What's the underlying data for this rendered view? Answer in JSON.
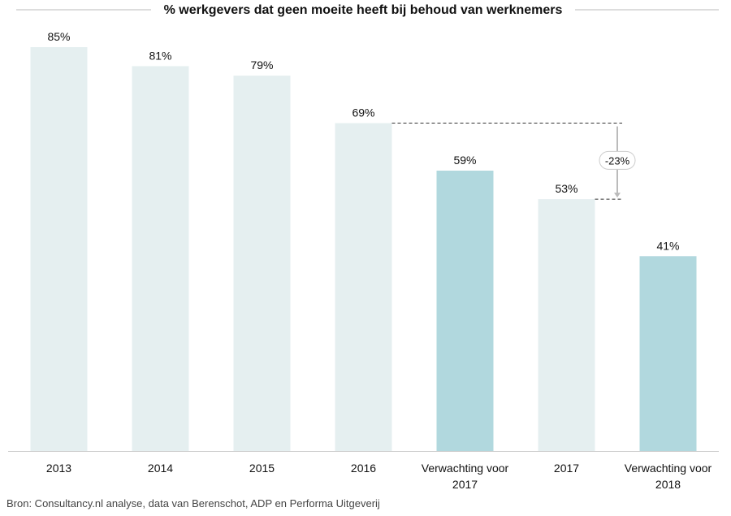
{
  "chart_data": {
    "type": "bar",
    "title": "% werkgevers dat geen moeite heeft bij behoud van werknemers",
    "categories": [
      "2013",
      "2014",
      "2015",
      "2016",
      "Verwachting voor 2017",
      "2017",
      "Verwachting voor 2018"
    ],
    "values": [
      85,
      81,
      79,
      69,
      59,
      53,
      41
    ],
    "value_labels": [
      "85%",
      "81%",
      "79%",
      "69%",
      "59%",
      "53%",
      "41%"
    ],
    "colors": [
      "#e5eff0",
      "#e5eff0",
      "#e5eff0",
      "#e5eff0",
      "#b1d8de",
      "#e5eff0",
      "#b1d8de"
    ],
    "ylim": [
      0,
      85
    ],
    "annotation": "-23%",
    "source": "Bron: Consultancy.nl analyse, data van Berenschot, ADP en Performa Uitgeverij"
  }
}
